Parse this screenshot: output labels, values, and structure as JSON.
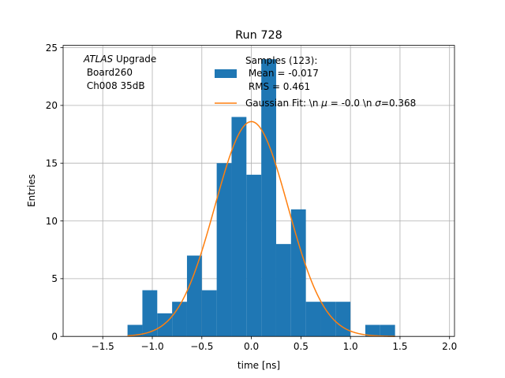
{
  "chart_data": {
    "type": "bar",
    "title": "Run 728",
    "xlabel": "time [ns]",
    "ylabel": "Entries",
    "xlim": [
      -1.9,
      2.05
    ],
    "ylim": [
      0,
      25.2
    ],
    "grid": true,
    "xticks": [
      -1.5,
      -1.0,
      -0.5,
      0.0,
      0.5,
      1.0,
      1.5,
      2.0
    ],
    "xtick_labels": [
      "−1.5",
      "−1.0",
      "−0.5",
      "0.0",
      "0.5",
      "1.0",
      "1.5",
      "2.0"
    ],
    "yticks": [
      0,
      5,
      10,
      15,
      20,
      25
    ],
    "ytick_labels": [
      "0",
      "5",
      "10",
      "15",
      "20",
      "25"
    ],
    "histogram": {
      "name": "Samples (123):",
      "color": "#1f77b4",
      "bin_edges": [
        -1.25,
        -1.1,
        -0.95,
        -0.8,
        -0.65,
        -0.5,
        -0.35,
        -0.2,
        -0.05,
        0.1,
        0.25,
        0.4,
        0.55,
        0.7,
        0.85,
        1.0,
        1.15,
        1.3,
        1.45
      ],
      "counts": [
        1,
        4,
        2,
        3,
        7,
        4,
        15,
        19,
        14,
        24,
        8,
        11,
        3,
        3,
        3,
        0,
        1,
        1
      ]
    },
    "fit": {
      "name": "Gaussian Fit: \\n μ = -0.0 \\n σ=0.368",
      "color": "#ff7f0e",
      "amplitude": 18.6,
      "mu": -0.0,
      "sigma": 0.368,
      "x_range": [
        -1.25,
        1.45
      ]
    },
    "legend": {
      "placement": "top-right",
      "samples_lines": [
        "Samples (123):",
        " Mean = -0.017",
        " RMS = 0.461"
      ],
      "fit_label_prefix": "Gaussian Fit: \\n ",
      "fit_label_mu": "μ",
      "fit_label_mid": " = -0.0 \\n ",
      "fit_label_sigma": "σ",
      "fit_label_suffix": "=0.368"
    },
    "annotation": {
      "atlas": "ATLAS",
      "upgrade": " Upgrade",
      "board": " Board260",
      "channel": " Ch008 35dB"
    }
  }
}
